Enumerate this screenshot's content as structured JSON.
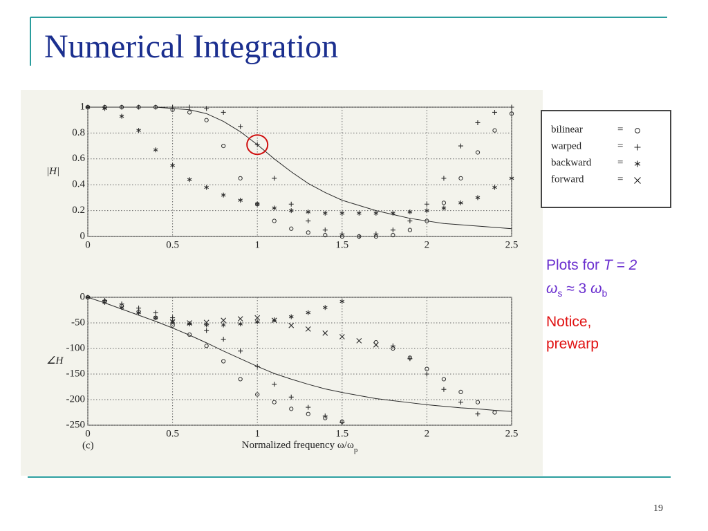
{
  "slide": {
    "title": "Numerical Integration",
    "page_number": 19,
    "legend": [
      {
        "name": "bilinear",
        "marker": "o"
      },
      {
        "name": "warped",
        "marker": "+"
      },
      {
        "name": "backward",
        "marker": "*"
      },
      {
        "name": "forward",
        "marker": "x"
      }
    ],
    "notes": [
      {
        "color": "#6a2fcf",
        "parts": [
          {
            "text": "Plots for "
          },
          {
            "text": "T = 2",
            "style": "italic"
          }
        ]
      },
      {
        "color": "#6a2fcf",
        "parts": [
          {
            "text": "ω",
            "style": "italic"
          },
          {
            "text": "s",
            "style": "sub"
          },
          {
            "text": " ≈ 3 "
          },
          {
            "text": "ω",
            "style": "italic"
          },
          {
            "text": "b",
            "style": "sub"
          }
        ]
      },
      {
        "color": "#e01010",
        "parts": [
          {
            "text": "Notice,"
          }
        ]
      },
      {
        "color": "#e01010",
        "parts": [
          {
            "text": "prewarp"
          }
        ]
      }
    ]
  },
  "chart_data": [
    {
      "type": "scatter",
      "ylabel": "|H|",
      "grid": true,
      "color": "#2a2a2a",
      "x": [
        0,
        0.1,
        0.2,
        0.3,
        0.4,
        0.5,
        0.6,
        0.7,
        0.8,
        0.9,
        1,
        1.1,
        1.2,
        1.3,
        1.4,
        1.5,
        1.6,
        1.7,
        1.8,
        1.9,
        2,
        2.1,
        2.2,
        2.3,
        2.4,
        2.5
      ],
      "xlim": [
        0,
        2.5
      ],
      "xticks": [
        0,
        0.5,
        1,
        1.5,
        2,
        2.5
      ],
      "ylim": [
        0,
        1
      ],
      "yticks": [
        0,
        0.2,
        0.4,
        0.6,
        0.8,
        1
      ],
      "highlight": {
        "x": 1,
        "y": 0.71,
        "color": "#d01010"
      },
      "series": [
        {
          "values": [
            1,
            1,
            1,
            1,
            1,
            0.99,
            0.98,
            0.95,
            0.89,
            0.81,
            0.71,
            0.6,
            0.5,
            0.41,
            0.34,
            0.28,
            0.24,
            0.2,
            0.17,
            0.14,
            0.12,
            0.1,
            0.09,
            0.08,
            0.07,
            0.06
          ]
        },
        {
          "marker": "o",
          "values": [
            1,
            1,
            1,
            1,
            1,
            0.98,
            0.96,
            0.9,
            0.7,
            0.45,
            0.25,
            0.12,
            0.06,
            0.03,
            0.01,
            0,
            0,
            0,
            0.01,
            0.05,
            0.12,
            0.26,
            0.45,
            0.65,
            0.82,
            0.95
          ]
        },
        {
          "marker": "+",
          "values": [
            1,
            1,
            1,
            1,
            1,
            1,
            1,
            0.99,
            0.96,
            0.85,
            0.71,
            0.45,
            0.25,
            0.12,
            0.05,
            0.02,
            0,
            0.02,
            0.05,
            0.12,
            0.25,
            0.45,
            0.7,
            0.88,
            0.96,
            1
          ]
        },
        {
          "marker": "*",
          "values": [
            1,
            0.99,
            0.93,
            0.82,
            0.67,
            0.55,
            0.44,
            0.38,
            0.32,
            0.28,
            0.25,
            0.22,
            0.2,
            0.19,
            0.18,
            0.18,
            0.18,
            0.18,
            0.18,
            0.19,
            0.2,
            0.22,
            0.26,
            0.3,
            0.38,
            0.45
          ]
        }
      ]
    },
    {
      "type": "scatter",
      "ylabel": "∠H",
      "xlabel": "Normalized frequency ω/ω",
      "xlabel_sub": "p",
      "annotation": "(c)",
      "grid": true,
      "color": "#2a2a2a",
      "x": [
        0,
        0.1,
        0.2,
        0.3,
        0.4,
        0.5,
        0.6,
        0.7,
        0.8,
        0.9,
        1,
        1.1,
        1.2,
        1.3,
        1.4,
        1.5,
        1.6,
        1.7,
        1.8,
        1.9,
        2,
        2.1,
        2.2,
        2.3,
        2.4,
        2.5
      ],
      "xlim": [
        0,
        2.5
      ],
      "xticks": [
        0,
        0.5,
        1,
        1.5,
        2,
        2.5
      ],
      "ylim": [
        -250,
        0
      ],
      "yticks": [
        -250,
        -200,
        -150,
        -100,
        -50,
        0
      ],
      "series": [
        {
          "values": [
            0,
            -11,
            -23,
            -35,
            -47,
            -60,
            -74,
            -89,
            -105,
            -120,
            -135,
            -149,
            -160,
            -170,
            -179,
            -186,
            -192,
            -198,
            -202,
            -206,
            -210,
            -213,
            -216,
            -218,
            -221,
            -223
          ]
        },
        {
          "marker": "o",
          "values": [
            0,
            -8,
            -17,
            -28,
            -40,
            -55,
            -73,
            -95,
            -125,
            -160,
            -190,
            -205,
            -218,
            -228,
            -236,
            -243,
            null,
            -88,
            -100,
            -118,
            -140,
            -160,
            -185,
            -205,
            -225,
            null
          ]
        },
        {
          "marker": "+",
          "values": [
            0,
            -6,
            -13,
            -21,
            -30,
            -40,
            -52,
            -65,
            -82,
            -105,
            -135,
            -170,
            -195,
            -215,
            -232,
            -245,
            null,
            null,
            -95,
            -120,
            -150,
            -180,
            -205,
            -228,
            null,
            null
          ]
        },
        {
          "marker": "*",
          "values": [
            0,
            -10,
            -20,
            -30,
            -40,
            -47,
            -52,
            -54,
            -54,
            -52,
            -48,
            -44,
            -38,
            -30,
            -20,
            -8,
            null,
            null,
            null,
            null,
            null,
            null,
            null,
            null,
            null,
            null
          ]
        },
        {
          "marker": "x",
          "values": [
            null,
            null,
            null,
            null,
            null,
            -48,
            -50,
            -49,
            -45,
            -42,
            -40,
            -45,
            -55,
            -62,
            -70,
            -77,
            -85,
            -93,
            null,
            null,
            null,
            null,
            null,
            null,
            null,
            null
          ]
        }
      ]
    }
  ]
}
